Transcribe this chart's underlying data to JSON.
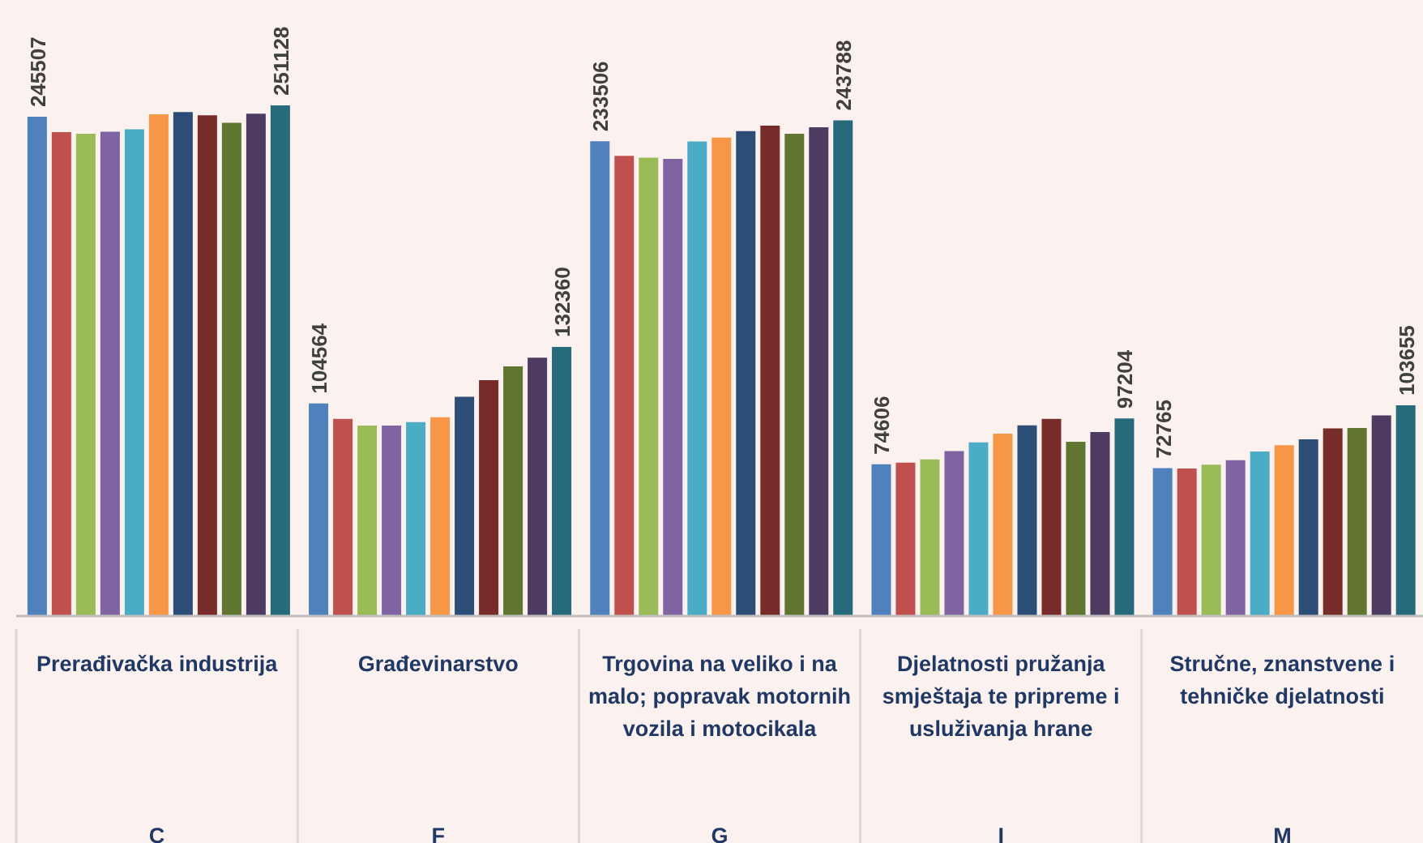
{
  "chart_data": {
    "type": "bar",
    "categories": [
      "Prerađivačka industrija\nC",
      "Građevinarstvo\nF",
      "Trgovina na veliko i na malo; popravak motornih vozila i motocikala\nG",
      "Djelatnosti pružanja smještaja te pripreme i usluživanja hrane\nI",
      "Stručne, znanstvene i tehničke djelatnosti\nM"
    ],
    "series": [
      {
        "color": "#4f81bd",
        "values": [
          245507,
          104564,
          233506,
          74606,
          72765
        ],
        "value_labels": [
          "245507",
          "104564",
          "233506",
          "74606",
          "72765"
        ]
      },
      {
        "color": "#c0504d",
        "values": [
          238000,
          97000,
          226300,
          75400,
          72500
        ]
      },
      {
        "color": "#9bbb59",
        "values": [
          237200,
          93700,
          225400,
          77000,
          74400
        ]
      },
      {
        "color": "#8064a2",
        "values": [
          238200,
          93700,
          224800,
          81100,
          76600
        ]
      },
      {
        "color": "#4bacc6",
        "values": [
          239400,
          95400,
          233400,
          85400,
          80900
        ]
      },
      {
        "color": "#f79646",
        "values": [
          246700,
          97800,
          235300,
          89700,
          84000
        ]
      },
      {
        "color": "#2c4d75",
        "values": [
          247800,
          107800,
          238500,
          93800,
          86900
        ]
      },
      {
        "color": "#772c2a",
        "values": [
          246200,
          116000,
          241200,
          97000,
          92300
        ]
      },
      {
        "color": "#5f7530",
        "values": [
          242600,
          122800,
          237200,
          85700,
          92500
        ]
      },
      {
        "color": "#4d3b62",
        "values": [
          247000,
          127100,
          240400,
          90500,
          98700
        ]
      },
      {
        "color": "#276a7c",
        "values": [
          251128,
          132360,
          243788,
          97204,
          103655
        ],
        "value_labels": [
          "251128",
          "132360",
          "243788",
          "97204",
          "103655"
        ]
      }
    ],
    "grid": false,
    "legend": false
  }
}
